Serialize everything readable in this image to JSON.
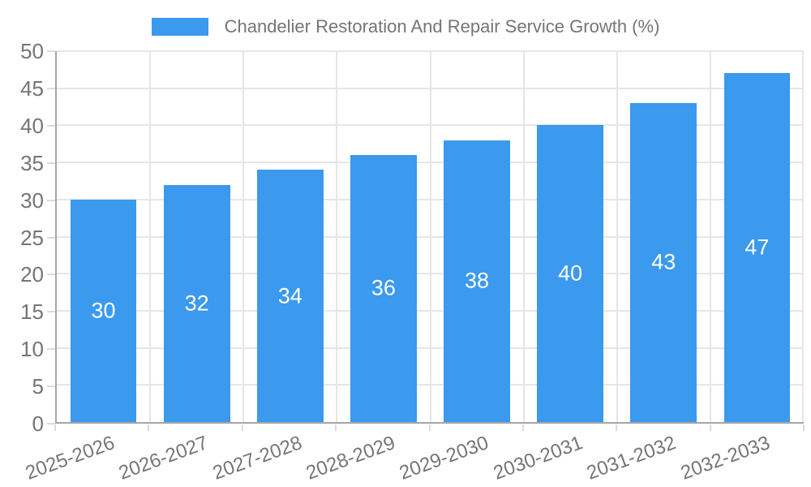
{
  "legend": {
    "label": "Chandelier Restoration And Repair Service Growth (%)"
  },
  "chart_data": {
    "type": "bar",
    "title": "Chandelier Restoration And Repair Service Growth (%)",
    "series_name": "Chandelier Restoration And Repair Service Growth (%)",
    "categories": [
      "2025-2026",
      "2026-2027",
      "2027-2028",
      "2028-2029",
      "2029-2030",
      "2030-2031",
      "2031-2032",
      "2032-2033"
    ],
    "values": [
      30,
      32,
      34,
      36,
      38,
      40,
      43,
      47
    ],
    "xlabel": "",
    "ylabel": "",
    "ylim": [
      0,
      50
    ],
    "ytick_step": 5,
    "yticks": [
      0,
      5,
      10,
      15,
      20,
      25,
      30,
      35,
      40,
      45,
      50
    ],
    "grid": true,
    "legend_position": "top-center",
    "value_labels": "inside-center",
    "x_tick_rotation_deg": -20,
    "colors": {
      "bar": "#3b99ee",
      "grid": "#e6e6e6",
      "axis": "#a6a6a6",
      "tick_text": "#757575",
      "legend_text": "#757575",
      "value_label_text": "#ffffff",
      "background": "#ffffff"
    }
  }
}
